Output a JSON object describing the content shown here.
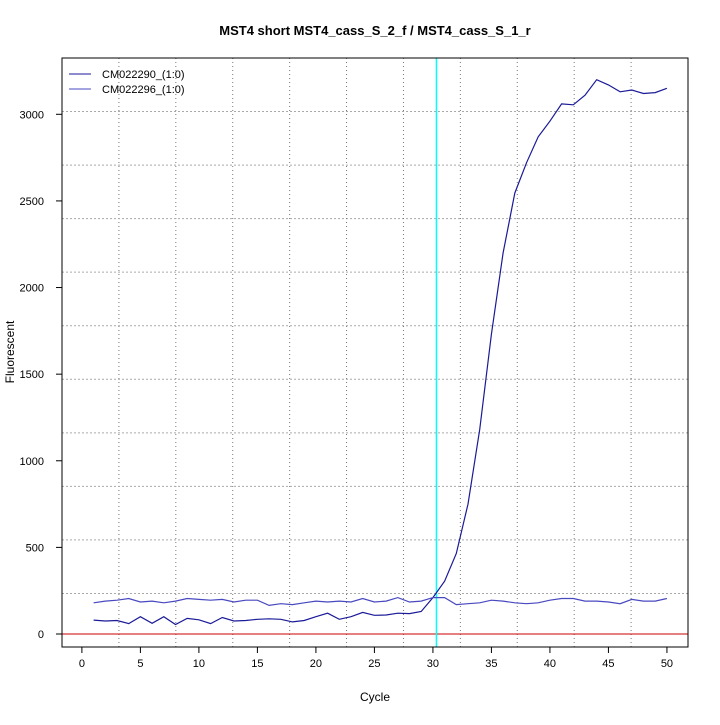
{
  "chart_data": {
    "type": "line",
    "title": "MST4 short MST4_cass_S_2_f / MST4_cass_S_1_r",
    "xlabel": "Cycle",
    "ylabel": "Fluorescent",
    "xlim": [
      -1.7,
      51.8
    ],
    "ylim": [
      -75,
      3325
    ],
    "xticks": [
      0,
      5,
      10,
      15,
      20,
      25,
      30,
      35,
      40,
      45,
      50
    ],
    "yticks": [
      0,
      500,
      1000,
      1500,
      2000,
      2500,
      3000
    ],
    "grid": true,
    "legend_position": "top-left",
    "threshold_cycle": 30.3,
    "threshold_color": "#00ffff",
    "baseline_value": 0,
    "baseline_color": "#cc0000",
    "x": [
      1,
      2,
      3,
      4,
      5,
      6,
      7,
      8,
      9,
      10,
      11,
      12,
      13,
      14,
      15,
      16,
      17,
      18,
      19,
      20,
      21,
      22,
      23,
      24,
      25,
      26,
      27,
      28,
      29,
      30,
      31,
      32,
      33,
      34,
      35,
      36,
      37,
      38,
      39,
      40,
      41,
      42,
      43,
      44,
      45,
      46,
      47,
      48,
      49,
      50
    ],
    "series": [
      {
        "name": "CM022290_(1:0)",
        "color": "#1a1a98",
        "values": [
          80,
          75,
          78,
          60,
          100,
          62,
          100,
          55,
          90,
          82,
          60,
          95,
          75,
          78,
          85,
          88,
          85,
          70,
          78,
          100,
          120,
          85,
          100,
          125,
          108,
          110,
          120,
          118,
          130,
          210,
          305,
          465,
          750,
          1180,
          1730,
          2200,
          2545,
          2720,
          2870,
          2960,
          3060,
          3055,
          3110,
          3200,
          3170,
          3130,
          3140,
          3120,
          3125,
          3150
        ]
      },
      {
        "name": "CM022296_(1:0)",
        "color": "#4848c0",
        "values": [
          180,
          190,
          195,
          205,
          185,
          190,
          180,
          190,
          205,
          200,
          195,
          200,
          185,
          195,
          195,
          165,
          175,
          170,
          180,
          190,
          185,
          190,
          185,
          205,
          185,
          190,
          210,
          185,
          190,
          210,
          210,
          170,
          175,
          180,
          195,
          190,
          180,
          175,
          180,
          195,
          205,
          205,
          190,
          190,
          185,
          175,
          200,
          190,
          190,
          205
        ]
      }
    ]
  }
}
